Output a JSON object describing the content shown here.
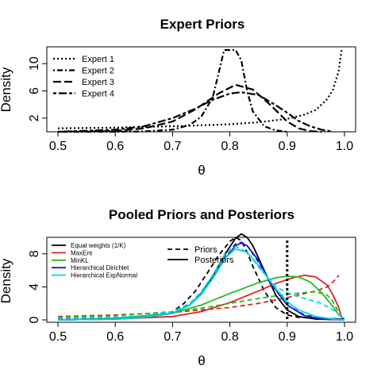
{
  "chart_data": [
    {
      "type": "line",
      "title": "Expert Priors",
      "xlabel": "θ",
      "ylabel": "Density",
      "xlim": [
        0.5,
        1.0
      ],
      "ylim": [
        0,
        12
      ],
      "xticks": [
        "0.5",
        "0.6",
        "0.7",
        "0.8",
        "0.9",
        "1.0"
      ],
      "yticks": [
        "2",
        "6",
        "10"
      ],
      "grid": false,
      "legend": {
        "placement": "top-left",
        "entries": [
          "Expert 1",
          "Expert 2",
          "Expert 3",
          "Expert 4"
        ]
      },
      "series": [
        {
          "name": "Expert 1",
          "color": "#000000",
          "dash": "dotted",
          "x": [
            0.5,
            0.6,
            0.7,
            0.8,
            0.85,
            0.9,
            0.93,
            0.95,
            0.97,
            0.98,
            0.99,
            0.995
          ],
          "y": [
            0.5,
            0.6,
            0.8,
            1.1,
            1.4,
            1.9,
            2.5,
            3.2,
            4.8,
            6.2,
            9.0,
            12.0
          ]
        },
        {
          "name": "Expert 2",
          "color": "#000000",
          "dash": "dotdash",
          "x": [
            0.5,
            0.6,
            0.65,
            0.7,
            0.73,
            0.75,
            0.77,
            0.78,
            0.79,
            0.8,
            0.81,
            0.82,
            0.83,
            0.84,
            0.86,
            0.88,
            0.9
          ],
          "y": [
            0.0,
            0.0,
            0.05,
            0.3,
            1.0,
            2.2,
            5.0,
            8.5,
            12.0,
            12.0,
            12.0,
            10.5,
            6.0,
            3.0,
            0.8,
            0.2,
            0.0
          ]
        },
        {
          "name": "Expert 3",
          "color": "#000000",
          "dash": "longdash",
          "x": [
            0.5,
            0.6,
            0.65,
            0.7,
            0.74,
            0.78,
            0.81,
            0.84,
            0.87,
            0.9,
            0.92,
            0.94,
            0.96
          ],
          "y": [
            0.0,
            0.1,
            0.5,
            1.5,
            3.3,
            5.6,
            6.9,
            6.2,
            4.0,
            1.5,
            0.5,
            0.1,
            0.0
          ]
        },
        {
          "name": "Expert 4",
          "color": "#000000",
          "dash": "twodash",
          "x": [
            0.5,
            0.6,
            0.65,
            0.7,
            0.74,
            0.77,
            0.8,
            0.82,
            0.85,
            0.88,
            0.9,
            0.92,
            0.94,
            0.96,
            0.98
          ],
          "y": [
            0.0,
            0.3,
            0.8,
            2.0,
            3.4,
            4.7,
            5.6,
            5.8,
            5.4,
            3.9,
            2.8,
            1.6,
            0.8,
            0.3,
            0.0
          ]
        }
      ]
    },
    {
      "type": "line",
      "title": "Pooled Priors and Posteriors",
      "xlabel": "θ",
      "ylabel": "Density",
      "xlim": [
        0.5,
        1.0
      ],
      "ylim": [
        0,
        10
      ],
      "xticks": [
        "0.5",
        "0.6",
        "0.7",
        "0.8",
        "0.9",
        "1.0"
      ],
      "yticks": [
        "0",
        "4",
        "8"
      ],
      "grid": false,
      "legend": {
        "placement": "top-left",
        "entries": [
          "Equal weights (1/K)",
          "MaxEnt",
          "MinKL",
          "Hierarchical Dirichlet",
          "Hierarchical ExpNormal"
        ]
      },
      "line_type_legend": {
        "placement": "top-center",
        "entries": [
          "Priors",
          "Posteriors"
        ]
      },
      "reference_line": {
        "x": 0.9,
        "style": "thick dotted"
      },
      "series": [
        {
          "name": "Equal weights (1/K)",
          "kind": "Priors",
          "color": "#000000",
          "dash": "dashed",
          "x": [
            0.5,
            0.6,
            0.65,
            0.7,
            0.72,
            0.74,
            0.76,
            0.78,
            0.8,
            0.81,
            0.82,
            0.83,
            0.84,
            0.86,
            0.88,
            0.9,
            0.92,
            0.95,
            1.0
          ],
          "y": [
            0.1,
            0.2,
            0.4,
            1.0,
            2.0,
            3.5,
            5.6,
            7.8,
            9.5,
            10.0,
            9.6,
            8.2,
            6.5,
            3.5,
            1.5,
            0.6,
            0.3,
            0.2,
            0.1
          ]
        },
        {
          "name": "Equal weights (1/K)",
          "kind": "Posteriors",
          "color": "#000000",
          "dash": "solid",
          "x": [
            0.5,
            0.6,
            0.65,
            0.7,
            0.73,
            0.75,
            0.77,
            0.79,
            0.81,
            0.82,
            0.83,
            0.84,
            0.86,
            0.88,
            0.9,
            0.92,
            0.95,
            1.0
          ],
          "y": [
            0.0,
            0.1,
            0.3,
            0.8,
            1.8,
            3.2,
            5.2,
            7.8,
            9.9,
            10.4,
            10.0,
            9.0,
            6.0,
            3.0,
            1.2,
            0.4,
            0.1,
            0.0
          ]
        },
        {
          "name": "MaxEnt",
          "kind": "Priors",
          "color": "#dd2222",
          "dash": "dashed",
          "x": [
            0.5,
            0.6,
            0.7,
            0.8,
            0.85,
            0.9,
            0.95,
            0.97,
            0.98,
            0.99
          ],
          "y": [
            0.4,
            0.6,
            0.9,
            1.5,
            2.0,
            2.7,
            3.5,
            4.0,
            4.6,
            5.4
          ]
        },
        {
          "name": "MaxEnt",
          "kind": "Posteriors",
          "color": "#dd2222",
          "dash": "solid",
          "x": [
            0.5,
            0.6,
            0.7,
            0.75,
            0.8,
            0.85,
            0.88,
            0.91,
            0.93,
            0.95,
            0.97,
            0.98,
            0.99,
            0.995
          ],
          "y": [
            0.0,
            0.1,
            0.4,
            1.0,
            2.1,
            3.5,
            4.4,
            5.1,
            5.4,
            5.2,
            4.2,
            3.0,
            1.5,
            0.3
          ]
        },
        {
          "name": "MinKL",
          "kind": "Priors",
          "color": "#22bb22",
          "dash": "dashed",
          "x": [
            0.5,
            0.6,
            0.7,
            0.75,
            0.8,
            0.85,
            0.9,
            0.93,
            0.95,
            0.97,
            0.98,
            0.99
          ],
          "y": [
            0.3,
            0.5,
            1.0,
            1.4,
            2.0,
            2.6,
            3.1,
            3.3,
            3.4,
            3.0,
            2.2,
            0.9
          ]
        },
        {
          "name": "MinKL",
          "kind": "Posteriors",
          "color": "#22bb22",
          "dash": "solid",
          "x": [
            0.5,
            0.6,
            0.7,
            0.75,
            0.8,
            0.85,
            0.88,
            0.9,
            0.92,
            0.94,
            0.96,
            0.98,
            0.99,
            1.0
          ],
          "y": [
            0.0,
            0.2,
            0.8,
            1.8,
            3.2,
            4.5,
            5.1,
            5.3,
            5.2,
            4.6,
            3.3,
            1.6,
            0.6,
            0.1
          ]
        },
        {
          "name": "Hierarchical Dirichlet",
          "kind": "Priors",
          "color": "#1a1ad6",
          "dash": "dashed",
          "x": [
            0.5,
            0.6,
            0.65,
            0.7,
            0.73,
            0.75,
            0.77,
            0.79,
            0.81,
            0.82,
            0.83,
            0.85,
            0.87,
            0.9,
            0.93,
            0.96,
            1.0
          ],
          "y": [
            0.1,
            0.2,
            0.4,
            0.9,
            1.9,
            3.2,
            5.2,
            7.6,
            9.2,
            9.4,
            9.0,
            7.0,
            4.5,
            1.8,
            0.6,
            0.2,
            0.1
          ]
        },
        {
          "name": "Hierarchical Dirichlet",
          "kind": "Posteriors",
          "color": "#1a1ad6",
          "dash": "solid",
          "x": [
            0.5,
            0.6,
            0.65,
            0.7,
            0.73,
            0.75,
            0.77,
            0.79,
            0.81,
            0.82,
            0.83,
            0.85,
            0.87,
            0.9,
            0.93,
            0.96,
            1.0
          ],
          "y": [
            0.0,
            0.1,
            0.3,
            0.8,
            1.8,
            3.1,
            5.0,
            7.3,
            9.0,
            9.3,
            9.0,
            7.2,
            4.6,
            1.8,
            0.5,
            0.1,
            0.0
          ]
        },
        {
          "name": "Hierarchical ExpNormal",
          "kind": "Priors",
          "color": "#00d8d8",
          "dash": "dashed",
          "x": [
            0.5,
            0.6,
            0.65,
            0.7,
            0.73,
            0.75,
            0.77,
            0.79,
            0.81,
            0.83,
            0.85,
            0.88,
            0.9,
            0.92,
            0.94,
            0.96,
            0.98,
            1.0
          ],
          "y": [
            0.2,
            0.3,
            0.5,
            1.0,
            2.0,
            3.4,
            5.4,
            7.8,
            8.9,
            8.2,
            6.4,
            4.0,
            3.3,
            2.8,
            2.4,
            2.0,
            1.2,
            0.2
          ]
        },
        {
          "name": "Hierarchical ExpNormal",
          "kind": "Posteriors",
          "color": "#00d8d8",
          "dash": "solid",
          "x": [
            0.5,
            0.6,
            0.65,
            0.7,
            0.73,
            0.75,
            0.77,
            0.79,
            0.81,
            0.83,
            0.85,
            0.88,
            0.9,
            0.92,
            0.95,
            0.98,
            1.0
          ],
          "y": [
            0.0,
            0.1,
            0.3,
            0.8,
            1.8,
            3.1,
            5.0,
            7.4,
            8.6,
            8.2,
            6.6,
            3.8,
            2.2,
            1.2,
            0.4,
            0.1,
            0.0
          ]
        }
      ]
    }
  ]
}
